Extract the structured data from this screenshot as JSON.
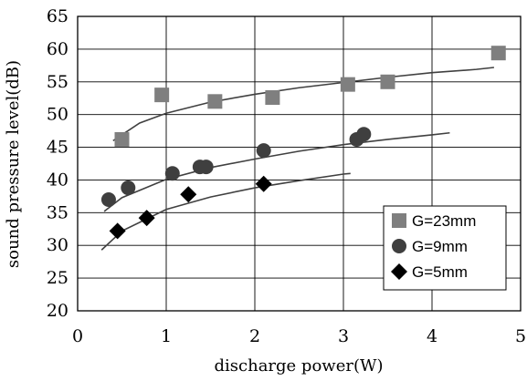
{
  "chart_data": {
    "type": "scatter",
    "xlabel": "discharge power(W)",
    "ylabel": "sound pressure level(dB)",
    "xlim": [
      0,
      5
    ],
    "ylim": [
      20,
      65
    ],
    "xticks": [
      "0",
      "1",
      "2",
      "3",
      "4",
      "5"
    ],
    "yticks": [
      "20",
      "25",
      "30",
      "35",
      "40",
      "45",
      "50",
      "55",
      "60",
      "65"
    ],
    "grid": true,
    "legend_position": "bottom-right",
    "series": [
      {
        "name": "G=23mm",
        "marker": "square",
        "color": "#7f7f7f",
        "x": [
          0.5,
          0.95,
          1.55,
          2.2,
          3.05,
          3.5,
          4.75
        ],
        "y": [
          46.2,
          53.0,
          52.0,
          52.6,
          54.6,
          55.0,
          59.4
        ],
        "trend": [
          [
            0.4,
            46.0
          ],
          [
            0.7,
            48.7
          ],
          [
            1.0,
            50.2
          ],
          [
            1.5,
            51.9
          ],
          [
            2.0,
            53.1
          ],
          [
            2.5,
            54.1
          ],
          [
            3.0,
            54.9
          ],
          [
            3.5,
            55.7
          ],
          [
            4.0,
            56.4
          ],
          [
            4.5,
            56.9
          ],
          [
            4.7,
            57.2
          ]
        ]
      },
      {
        "name": "G=9mm",
        "marker": "circle",
        "color": "#3f3f3f",
        "x": [
          0.35,
          0.57,
          1.07,
          1.38,
          1.45,
          2.1,
          3.15,
          3.23
        ],
        "y": [
          37.0,
          38.8,
          41.0,
          42.0,
          42.0,
          44.5,
          46.2,
          47.0
        ],
        "trend": [
          [
            0.3,
            35.2
          ],
          [
            0.5,
            37.3
          ],
          [
            1.0,
            40.1
          ],
          [
            1.5,
            41.9
          ],
          [
            2.0,
            43.2
          ],
          [
            2.5,
            44.4
          ],
          [
            3.0,
            45.4
          ],
          [
            3.5,
            46.2
          ],
          [
            4.0,
            46.9
          ],
          [
            4.2,
            47.2
          ]
        ]
      },
      {
        "name": "G=5mm",
        "marker": "diamond",
        "color": "#000000",
        "x": [
          0.45,
          0.78,
          1.25,
          2.1
        ],
        "y": [
          32.2,
          34.2,
          37.8,
          39.4
        ],
        "trend": [
          [
            0.27,
            29.3
          ],
          [
            0.5,
            32.2
          ],
          [
            1.0,
            35.5
          ],
          [
            1.5,
            37.4
          ],
          [
            2.0,
            38.8
          ],
          [
            2.5,
            39.9
          ],
          [
            3.0,
            40.9
          ],
          [
            3.08,
            41.0
          ]
        ]
      }
    ]
  }
}
